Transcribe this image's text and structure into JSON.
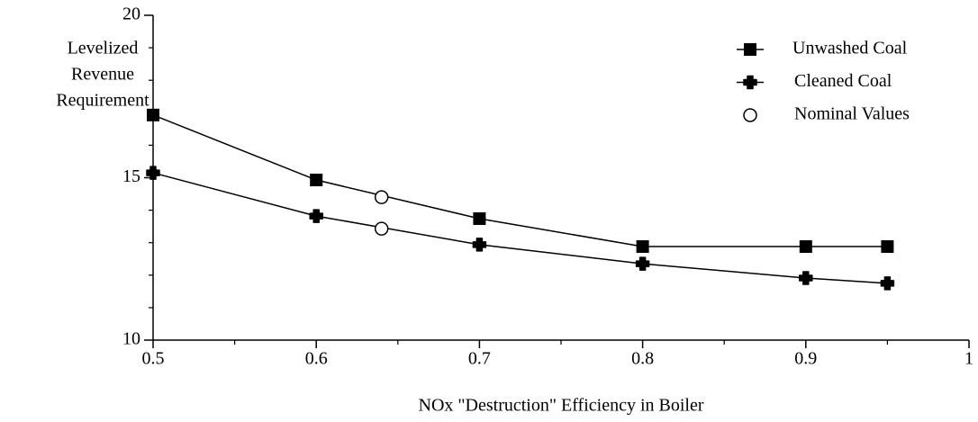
{
  "chart_data": {
    "type": "line",
    "x_label": "NOx \"Destruction\" Efficiency in Boiler",
    "y_label": [
      "Levelized",
      "Revenue",
      "Requirement"
    ],
    "xlim": [
      0.5,
      1
    ],
    "xticks": [
      0.5,
      0.6,
      0.7,
      0.8,
      0.9,
      1
    ],
    "ylim": [
      10,
      20
    ],
    "yticks": [
      10,
      15,
      20
    ],
    "grid": false,
    "legend": "upper right",
    "series": [
      {
        "name": "Unwashed Coal",
        "color": "#000000",
        "marker": "square",
        "line": true,
        "x": [
          0.5,
          0.6,
          0.7,
          0.8,
          0.9,
          0.95
        ],
        "values": [
          16.93,
          14.93,
          13.74,
          12.88,
          12.88,
          12.88
        ]
      },
      {
        "name": "Cleaned Coal",
        "color": "#000000",
        "marker": "cross",
        "line": true,
        "x": [
          0.5,
          0.6,
          0.7,
          0.8,
          0.9,
          0.95
        ],
        "values": [
          15.15,
          13.82,
          12.94,
          12.35,
          11.91,
          11.75
        ]
      },
      {
        "name": "Nominal Values",
        "color": "#000000",
        "marker": "circle",
        "line": false,
        "x": [
          0.64,
          0.64
        ],
        "values": [
          14.4,
          13.43
        ]
      }
    ]
  }
}
